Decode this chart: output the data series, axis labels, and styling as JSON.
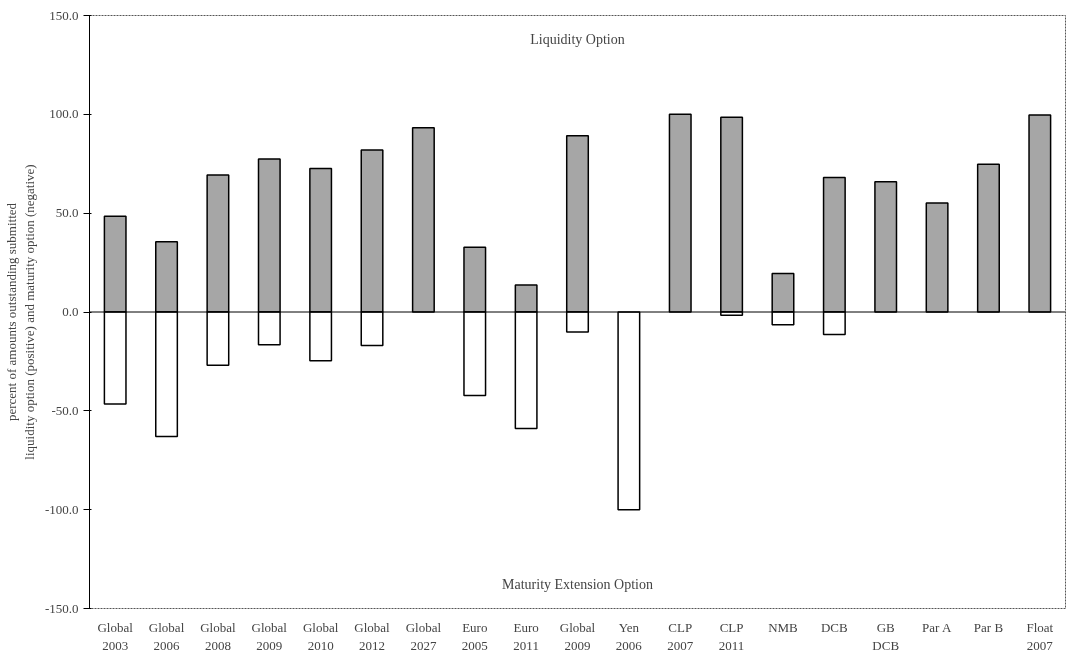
{
  "chart_data": {
    "type": "bar",
    "ylabel": "percent of amounts outstanding submitted\nliquidity option (positive) and maturity option (negative)",
    "categories": [
      "Global\n2003",
      "Global\n2006",
      "Global\n2008",
      "Global\n2009",
      "Global\n2010",
      "Global\n2012",
      "Global\n2027",
      "Euro\n2005",
      "Euro\n2011",
      "Global\n2009",
      "Yen\n2006",
      "CLP\n2007",
      "CLP\n2011",
      "NMB",
      "DCB",
      "GB\nDCB",
      "Par A",
      "Par B",
      "Float\n2007"
    ],
    "series": [
      {
        "color": "#a6a6a6",
        "values": [
          48.4,
          35.5,
          69.3,
          77.4,
          72.6,
          81.9,
          93.2,
          32.8,
          13.6,
          89.2,
          null,
          100,
          98.5,
          19.5,
          68.1,
          65.9,
          55.1,
          74.8,
          99.7
        ]
      },
      {
        "color": "#ffffff",
        "values": [
          -46.6,
          -63.0,
          -27.0,
          -16.6,
          -24.7,
          -17.0,
          null,
          -42.2,
          -59.0,
          -10.1,
          -100,
          null,
          -1.6,
          -6.5,
          -11.4,
          null,
          null,
          null,
          null
        ]
      }
    ],
    "stacked": true,
    "ref_lines": [
      {
        "axis": "y",
        "value": 0
      }
    ],
    "ylim": [
      -150,
      150
    ],
    "yticks": [
      {
        "value": -150,
        "label": "-150.0"
      },
      {
        "value": -100,
        "label": "-100.0"
      },
      {
        "value": -50,
        "label": "-50.0"
      },
      {
        "value": 0,
        "label": "0.0"
      },
      {
        "value": 50,
        "label": "50.0"
      },
      {
        "value": 100,
        "label": "100.0"
      },
      {
        "value": 150,
        "label": "150.0"
      }
    ],
    "annotations": [
      "Liquidity Option",
      "Maturity Extension Option"
    ],
    "grid": false
  }
}
